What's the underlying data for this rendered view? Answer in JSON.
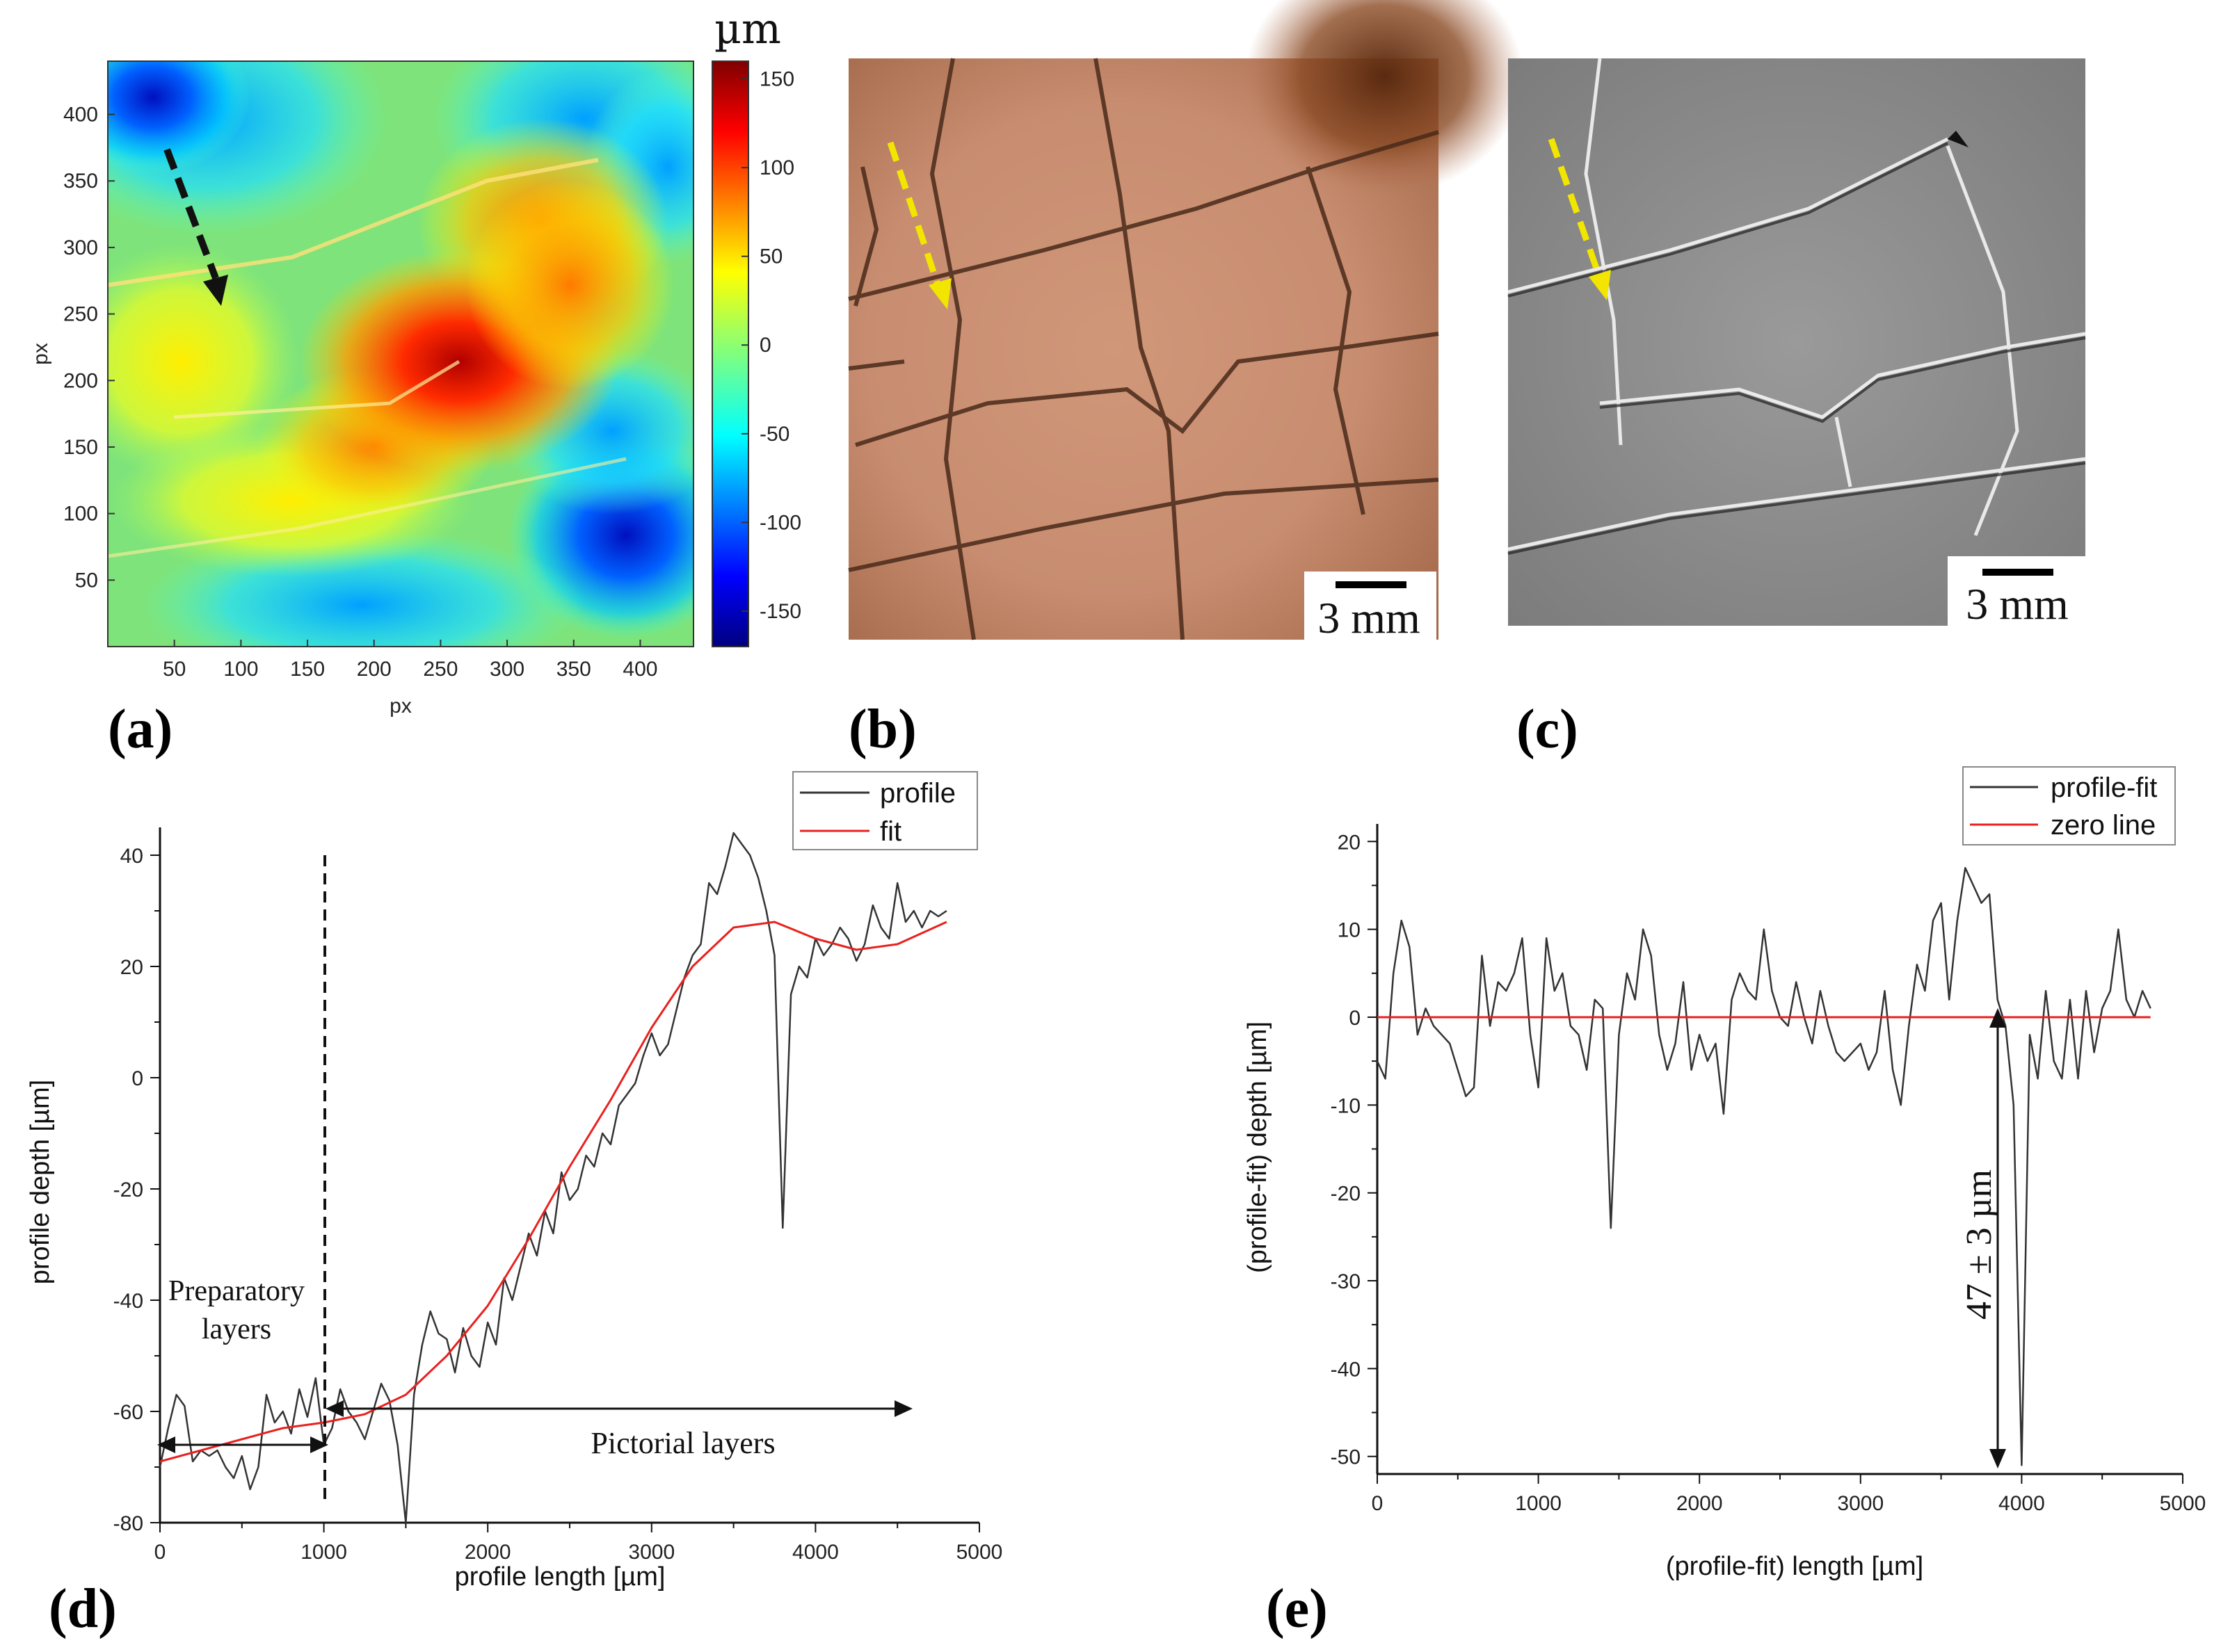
{
  "panels": {
    "a": {
      "label": "(a)"
    },
    "b": {
      "label": "(b)"
    },
    "c": {
      "label": "(c)"
    },
    "d": {
      "label": "(d)"
    },
    "e": {
      "label": "(e)"
    }
  },
  "colors": {
    "profile": "#333333",
    "fit": "#e8211f",
    "zero_line": "#e8211f",
    "arrow_yellow": "#f2e600",
    "arrow_black": "#111111"
  },
  "heatmap": {
    "xlabel": "px",
    "ylabel": "px",
    "xticks": [
      "50",
      "100",
      "150",
      "200",
      "250",
      "300",
      "350",
      "400"
    ],
    "yticks": [
      "400",
      "350",
      "300",
      "250",
      "200",
      "150",
      "100",
      "50"
    ],
    "colorbar": {
      "unit": "µm",
      "ticks": [
        "150",
        "100",
        "50",
        "0",
        "-50",
        "-100",
        "-150"
      ],
      "range": [
        -170,
        160
      ]
    }
  },
  "photo_b": {
    "scale_label": "3 mm"
  },
  "photo_c": {
    "scale_label": "3 mm"
  },
  "chart_data": [
    {
      "panel": "d",
      "type": "line",
      "xlabel": "profile length [µm]",
      "ylabel": "profile depth [µm]",
      "xlim": [
        0,
        5000
      ],
      "ylim": [
        -80,
        45
      ],
      "xticks": [
        0,
        1000,
        2000,
        3000,
        4000,
        5000
      ],
      "yticks": [
        -80,
        -60,
        -40,
        -20,
        0,
        20,
        40
      ],
      "legend": "top-right",
      "series": [
        {
          "name": "profile",
          "x": [
            0,
            50,
            100,
            150,
            200,
            250,
            300,
            350,
            400,
            450,
            500,
            550,
            600,
            650,
            700,
            750,
            800,
            850,
            900,
            950,
            1000,
            1050,
            1100,
            1150,
            1200,
            1250,
            1300,
            1350,
            1400,
            1450,
            1500,
            1550,
            1600,
            1650,
            1700,
            1750,
            1800,
            1850,
            1900,
            1950,
            2000,
            2050,
            2100,
            2150,
            2200,
            2250,
            2300,
            2350,
            2400,
            2450,
            2500,
            2550,
            2600,
            2650,
            2700,
            2750,
            2800,
            2850,
            2900,
            2950,
            3000,
            3050,
            3100,
            3150,
            3200,
            3250,
            3300,
            3350,
            3400,
            3450,
            3500,
            3550,
            3600,
            3650,
            3700,
            3750,
            3800,
            3850,
            3900,
            3950,
            4000,
            4050,
            4100,
            4150,
            4200,
            4250,
            4300,
            4350,
            4400,
            4450,
            4500,
            4550,
            4600,
            4650,
            4700,
            4750,
            4800
          ],
          "y": [
            -70,
            -63,
            -57,
            -59,
            -69,
            -67,
            -68,
            -67,
            -70,
            -72,
            -68,
            -74,
            -70,
            -57,
            -62,
            -60,
            -64,
            -56,
            -61,
            -54,
            -66,
            -63,
            -56,
            -60,
            -62,
            -65,
            -60,
            -55,
            -58,
            -66,
            -80,
            -57,
            -48,
            -42,
            -46,
            -47,
            -53,
            -45,
            -50,
            -52,
            -44,
            -48,
            -36,
            -40,
            -34,
            -28,
            -32,
            -24,
            -28,
            -17,
            -22,
            -20,
            -14,
            -16,
            -10,
            -12,
            -5,
            -3,
            -1,
            4,
            8,
            4,
            6,
            12,
            18,
            22,
            24,
            35,
            33,
            38,
            44,
            42,
            40,
            36,
            30,
            22,
            -27,
            15,
            20,
            18,
            25,
            22,
            24,
            27,
            25,
            21,
            24,
            31,
            27,
            25,
            35,
            28,
            30,
            27,
            30,
            29,
            30
          ],
          "color": "#333333"
        },
        {
          "name": "fit",
          "x": [
            0,
            250,
            500,
            750,
            1000,
            1250,
            1500,
            1750,
            2000,
            2250,
            2500,
            2750,
            3000,
            3250,
            3500,
            3750,
            4000,
            4250,
            4500,
            4800
          ],
          "y": [
            -69,
            -67,
            -65,
            -63,
            -62,
            -60.5,
            -57,
            -50,
            -41,
            -29,
            -16,
            -4,
            9,
            20,
            27,
            28,
            25,
            23,
            24,
            28
          ],
          "color": "#e8211f"
        }
      ],
      "annotations": [
        {
          "text": "Preparatory",
          "text2": "layers",
          "span": [
            0,
            1000
          ]
        },
        {
          "text": "Pictorial layers",
          "span": [
            1000,
            4600
          ]
        }
      ]
    },
    {
      "panel": "e",
      "type": "line",
      "xlabel": "(profile-fit) length [µm]",
      "ylabel": "(profile-fit) depth [µm]",
      "xlim": [
        0,
        5000
      ],
      "ylim": [
        -52,
        22
      ],
      "xticks": [
        0,
        1000,
        2000,
        3000,
        4000,
        5000
      ],
      "yticks": [
        -50,
        -40,
        -30,
        -20,
        -10,
        0,
        10,
        20
      ],
      "legend": "top-right",
      "series": [
        {
          "name": "profile-fit",
          "x": [
            0,
            50,
            100,
            150,
            200,
            250,
            300,
            350,
            400,
            450,
            500,
            550,
            600,
            650,
            700,
            750,
            800,
            850,
            900,
            950,
            1000,
            1050,
            1100,
            1150,
            1200,
            1250,
            1300,
            1350,
            1400,
            1450,
            1500,
            1550,
            1600,
            1650,
            1700,
            1750,
            1800,
            1850,
            1900,
            1950,
            2000,
            2050,
            2100,
            2150,
            2200,
            2250,
            2300,
            2350,
            2400,
            2450,
            2500,
            2550,
            2600,
            2650,
            2700,
            2750,
            2800,
            2850,
            2900,
            2950,
            3000,
            3050,
            3100,
            3150,
            3200,
            3250,
            3300,
            3350,
            3400,
            3450,
            3500,
            3550,
            3600,
            3650,
            3700,
            3750,
            3800,
            3850,
            3900,
            3950,
            4000,
            4050,
            4100,
            4150,
            4200,
            4250,
            4300,
            4350,
            4400,
            4450,
            4500,
            4550,
            4600,
            4650,
            4700,
            4750,
            4800
          ],
          "y": [
            -5,
            -7,
            5,
            11,
            8,
            -2,
            1,
            -1,
            -2,
            -3,
            -6,
            -9,
            -8,
            7,
            -1,
            4,
            3,
            5,
            9,
            -2,
            -8,
            9,
            3,
            5,
            -1,
            -2,
            -6,
            2,
            1,
            -24,
            -2,
            5,
            2,
            10,
            7,
            -2,
            -6,
            -3,
            4,
            -6,
            -2,
            -5,
            -3,
            -11,
            2,
            5,
            3,
            2,
            10,
            3,
            0,
            -1,
            4,
            0,
            -3,
            3,
            -1,
            -4,
            -5,
            -4,
            -3,
            -6,
            -4,
            3,
            -6,
            -10,
            -1,
            6,
            3,
            11,
            13,
            2,
            11,
            17,
            15,
            13,
            14,
            2,
            -1,
            -10,
            -51,
            -2,
            -7,
            3,
            -5,
            -7,
            2,
            -7,
            3,
            -4,
            1,
            3,
            10,
            2,
            0,
            3,
            1
          ],
          "color": "#333333"
        },
        {
          "name": "zero line",
          "x": [
            0,
            4800
          ],
          "y": [
            0,
            0
          ],
          "color": "#e8211f"
        }
      ],
      "annotations": [
        {
          "text": "47 ± 3 µm",
          "x": 3880,
          "from": 0,
          "to": -51
        }
      ]
    }
  ]
}
